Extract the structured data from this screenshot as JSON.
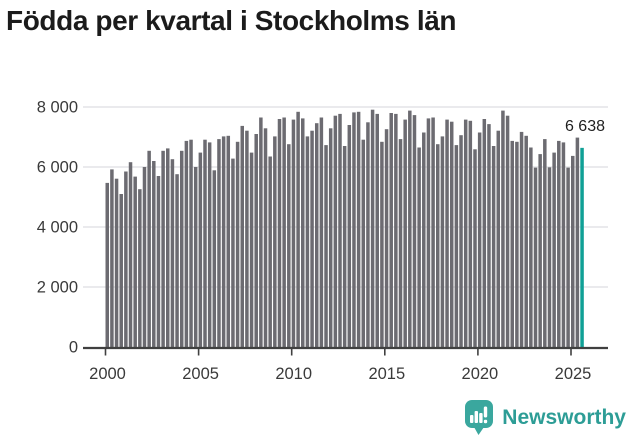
{
  "title": "Födda per kvartal i Stockholms län",
  "logo": {
    "text": "Newsworthy",
    "icon": "newsworthy-barchart-bubble"
  },
  "colors": {
    "bar": "#6c6b71",
    "highlight": "#10a096",
    "grid": "#e4e4e7",
    "axis": "#404040",
    "title_text": "#1b1b1b",
    "tick_text": "#3a3a3a",
    "logo_teal": "#2d9d96",
    "logo_icon": "#3aa79e"
  },
  "chart_data": {
    "type": "bar",
    "title": "Födda per kvartal i Stockholms län",
    "xlabel": "",
    "ylabel": "",
    "ylim": [
      0,
      8000
    ],
    "grid": true,
    "start": {
      "year": 2000,
      "quarter": 1
    },
    "frequency": "quarterly",
    "x_tick_labels": [
      "2000",
      "2005",
      "2010",
      "2015",
      "2020",
      "2025"
    ],
    "y_ticks": [
      {
        "value": 0,
        "label": "0"
      },
      {
        "value": 2000,
        "label": "2 000"
      },
      {
        "value": 4000,
        "label": "4 000"
      },
      {
        "value": 6000,
        "label": "6 000"
      },
      {
        "value": 8000,
        "label": "8 000"
      }
    ],
    "highlight": {
      "index": 102,
      "label": "6 638",
      "value": 6638,
      "quarter": "2025 K3"
    },
    "values": [
      5470,
      5920,
      5610,
      5100,
      5850,
      6160,
      5680,
      5260,
      6000,
      6540,
      6200,
      5700,
      6540,
      6620,
      6260,
      5760,
      6540,
      6870,
      6910,
      6000,
      6480,
      6910,
      6820,
      5890,
      6930,
      7020,
      7040,
      6280,
      6840,
      7370,
      7210,
      6480,
      7100,
      7650,
      7290,
      6350,
      7020,
      7600,
      7650,
      6760,
      7580,
      7840,
      7620,
      7020,
      7210,
      7460,
      7650,
      6730,
      7290,
      7710,
      7770,
      6700,
      7400,
      7820,
      7840,
      6910,
      7490,
      7910,
      7770,
      6840,
      7260,
      7800,
      7770,
      6930,
      7580,
      7880,
      7730,
      6650,
      7150,
      7620,
      7650,
      6760,
      7020,
      7580,
      7510,
      6730,
      7060,
      7580,
      7540,
      6590,
      7150,
      7600,
      7430,
      6700,
      7210,
      7880,
      7710,
      6870,
      6840,
      7170,
      7040,
      6650,
      5980,
      6430,
      6930,
      5990,
      6480,
      6870,
      6820,
      5980,
      6370,
      6980,
      6638
    ]
  }
}
